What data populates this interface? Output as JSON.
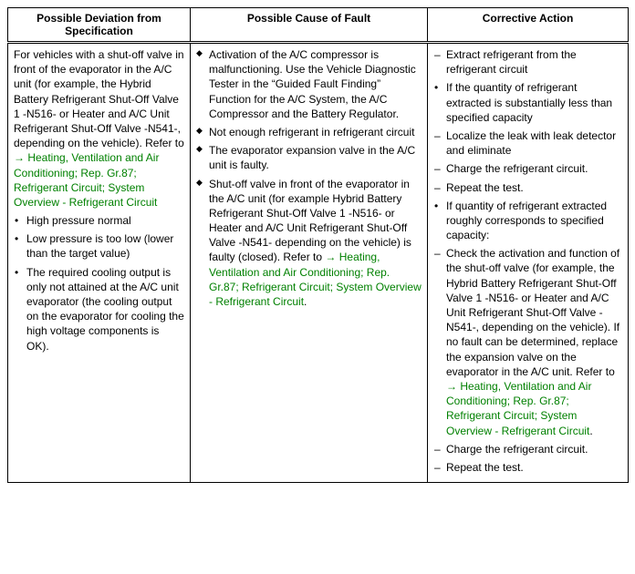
{
  "table": {
    "headers": [
      "Possible Deviation from Specification",
      "Possible Cause of Fault",
      "Corrective Action"
    ],
    "link_color": "#008000",
    "text_color": "#000000",
    "col1": {
      "intro_pre": "For vehicles with a shut-off valve in front of the evaporator in the A/C unit (for example, the Hybrid Battery Refrigerant Shut-Off Valve 1 -N516- or Heater and A/C Unit Refrigerant Shut-Off Valve -N541-, depending on the vehicle). Refer to ",
      "intro_link": "→ Heating, Ventilation and Air Conditioning; Rep. Gr.87; Refrigerant Circuit; System Overview - Refrigerant Circuit",
      "items": [
        {
          "text": "High pressure normal"
        },
        {
          "text": "Low pressure is too low (lower than the target value)"
        },
        {
          "text": "The required cooling output is only not attained at the A/C unit evaporator (the cooling output on the evaporator for cooling the high voltage components is OK)."
        }
      ]
    },
    "col2": {
      "items": [
        {
          "text": "Activation of the A/C compressor is malfunctioning. Use the Vehicle Diagnostic Tester in the “Guided Fault Finding” Function for the A/C System, the A/C Compressor and the Battery Regulator."
        },
        {
          "text": "Not enough refrigerant in refrigerant circuit"
        },
        {
          "text": "The evaporator expansion valve in the A/C unit is faulty."
        },
        {
          "text_pre": "Shut-off valve in front of the evaporator in the A/C unit (for example Hybrid Battery Refrigerant Shut-Off Valve 1 -N516- or Heater and A/C Unit Refrigerant Shut-Off Valve -N541- depending on the vehicle) is faulty (closed). Refer to ",
          "link": "→ Heating, Ventilation and Air Conditioning; Rep. Gr.87; Refrigerant Circuit; System Overview - Refrigerant Circuit",
          "text_post": "."
        }
      ]
    },
    "col3": {
      "items": [
        {
          "bullet": "dash",
          "text": "Extract refrigerant from the refrigerant circuit"
        },
        {
          "bullet": "dot",
          "text": "If the quantity of refrigerant extracted is substantially less than specified capacity"
        },
        {
          "bullet": "dash",
          "text": "Localize the leak with leak detector and eliminate"
        },
        {
          "bullet": "dash",
          "text": "Charge the refrigerant circuit."
        },
        {
          "bullet": "dash",
          "text": "Repeat the test."
        },
        {
          "bullet": "dot",
          "text": "If quantity of refrigerant extracted roughly corresponds to specified capacity:"
        },
        {
          "bullet": "dash",
          "text_pre": "Check the activation and function of the shut-off valve (for example, the Hybrid Battery Refrigerant Shut-Off Valve 1 -N516- or Heater and A/C Unit Refrigerant Shut-Off Valve -N541-, depending on the vehicle). If no fault can be determined, replace the expansion valve on the evaporator in the A/C unit. Refer to ",
          "link": "→ Heating, Ventilation and Air Conditioning; Rep. Gr.87; Refrigerant Circuit; System Overview - Refrigerant Circuit",
          "text_post": "."
        },
        {
          "bullet": "dash",
          "text": "Charge the refrigerant circuit."
        },
        {
          "bullet": "dash",
          "text": "Repeat the test."
        }
      ]
    }
  }
}
